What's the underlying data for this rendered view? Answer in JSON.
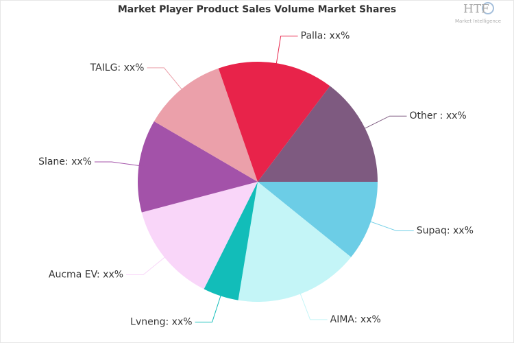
{
  "chart_data": {
    "type": "pie",
    "title": "Market Player Product Sales Volume Market Shares",
    "categories": [
      "Supaq: xx%",
      "AIMA: xx%",
      "Lvneng: xx%",
      "Aucma EV: xx%",
      "Slane: xx%",
      "TAILG: xx%",
      "Palla: xx%",
      "Other : xx%"
    ],
    "values": [
      10.8,
      16.8,
      4.8,
      13.5,
      12.5,
      11.3,
      15.6,
      14.7
    ],
    "colors": [
      "#6ccde6",
      "#c4f5f7",
      "#12bdb9",
      "#f9d6f9",
      "#a352a9",
      "#eba0aa",
      "#e8234a",
      "#7e5a80"
    ]
  },
  "logo": {
    "mark": "HTF",
    "subtitle": "Market Intelligence"
  }
}
